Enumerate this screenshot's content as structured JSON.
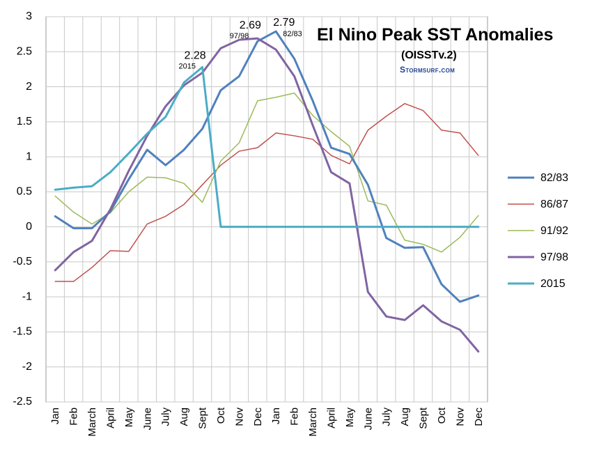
{
  "chart_data": {
    "type": "line",
    "title": "El Nino Peak SST Anomalies",
    "subtitle": "(OISSTv.2)",
    "credit": "Stormsurf.com",
    "xlabel": "",
    "ylabel": "",
    "ylim": [
      -2.5,
      3
    ],
    "yticks": [
      "3",
      "2.5",
      "2",
      "1.5",
      "1",
      "0.5",
      "0",
      "-0.5",
      "-1",
      "-1.5",
      "-2",
      "-2.5"
    ],
    "grid": true,
    "legend_position": "right",
    "categories": [
      "Jan",
      "Feb",
      "March",
      "April",
      "May",
      "June",
      "July",
      "Aug",
      "Sept",
      "Oct",
      "Nov",
      "Dec",
      "Jan",
      "Feb",
      "March",
      "April",
      "May",
      "June",
      "July",
      "Aug",
      "Sept",
      "Oct",
      "Nov",
      "Dec"
    ],
    "series": [
      {
        "name": "82/83",
        "color": "#4f81bd",
        "width": 3,
        "values": [
          0.15,
          -0.02,
          -0.02,
          0.22,
          0.68,
          1.1,
          0.88,
          1.1,
          1.4,
          1.95,
          2.15,
          2.65,
          2.79,
          2.4,
          1.8,
          1.13,
          1.04,
          0.6,
          -0.16,
          -0.3,
          -0.29,
          -0.82,
          -1.07,
          -0.98
        ]
      },
      {
        "name": "86/87",
        "color": "#c0504d",
        "width": 1.5,
        "values": [
          -0.78,
          -0.78,
          -0.58,
          -0.34,
          -0.35,
          0.04,
          0.15,
          0.32,
          0.6,
          0.88,
          1.08,
          1.13,
          1.34,
          1.3,
          1.25,
          1.02,
          0.9,
          1.38,
          1.58,
          1.76,
          1.66,
          1.38,
          1.34,
          1.02
        ]
      },
      {
        "name": "91/92",
        "color": "#9bbb59",
        "width": 1.5,
        "values": [
          0.44,
          0.21,
          0.04,
          0.2,
          0.5,
          0.71,
          0.7,
          0.62,
          0.35,
          0.94,
          1.2,
          1.8,
          1.85,
          1.91,
          1.59,
          1.36,
          1.15,
          0.37,
          0.31,
          -0.19,
          -0.25,
          -0.36,
          -0.15,
          0.16
        ]
      },
      {
        "name": "97/98",
        "color": "#8064a2",
        "width": 3,
        "values": [
          -0.62,
          -0.36,
          -0.2,
          0.25,
          0.8,
          1.3,
          1.72,
          2.02,
          2.2,
          2.55,
          2.67,
          2.69,
          2.53,
          2.15,
          1.45,
          0.78,
          0.62,
          -0.93,
          -1.28,
          -1.33,
          -1.12,
          -1.35,
          -1.47,
          -1.78
        ]
      },
      {
        "name": "2015",
        "color": "#4bacc6",
        "width": 3,
        "values": [
          0.53,
          0.56,
          0.58,
          0.78,
          1.05,
          1.33,
          1.57,
          2.06,
          2.28,
          0.0,
          0.0,
          0.0,
          0.0,
          0.0,
          0.0,
          0.0,
          0.0,
          0.0,
          0.0,
          0.0,
          0.0,
          0.0,
          0.0,
          0.0
        ]
      }
    ],
    "annotations": [
      {
        "value": "2.28",
        "label": "2015",
        "x_index": 8
      },
      {
        "value": "2.69",
        "label": "97/98",
        "x_index": 11
      },
      {
        "value": "2.79",
        "label": "82/83",
        "x_index": 12
      }
    ]
  }
}
